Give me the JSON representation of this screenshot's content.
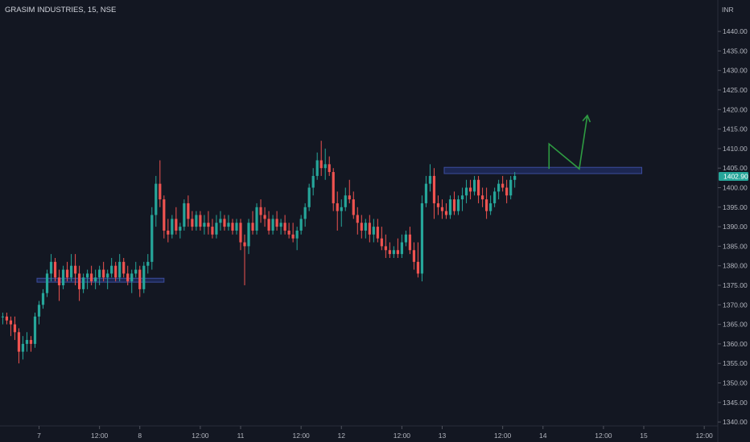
{
  "chart_data": {
    "type": "candlestick",
    "title": "GRASIM INDUSTRIES, 15, NSE",
    "currency": "INR",
    "y_range": [
      1338,
      1445
    ],
    "y_ticks": [
      1340,
      1345,
      1350,
      1355,
      1360,
      1365,
      1370,
      1375,
      1380,
      1385,
      1390,
      1395,
      1400,
      1405,
      1410,
      1415,
      1420,
      1425,
      1430,
      1435,
      1440
    ],
    "y_tick_labels": [
      "1340.00",
      "1345.00",
      "1350.00",
      "1355.00",
      "1360.00",
      "1365.00",
      "1370.00",
      "1375.00",
      "1380.00",
      "1385.00",
      "1390.00",
      "1395.00",
      "1400.00",
      "1405.00",
      "1410.00",
      "1415.00",
      "1420.00",
      "1425.00",
      "1430.00",
      "1435.00",
      "1440.00"
    ],
    "x_tick_labels": [
      "7",
      "12:00",
      "8",
      "12:00",
      "11",
      "12:00",
      "12",
      "12:00",
      "13",
      "12:00",
      "14",
      "12:00",
      "15",
      "12:00"
    ],
    "x_tick_units": [
      0,
      15,
      25,
      40,
      50,
      65,
      75,
      90,
      100,
      115,
      125,
      140,
      150,
      165
    ],
    "x_units_per_day": 25,
    "candles_per_day": 25,
    "last_price": "1402.90",
    "colors": {
      "up": "#26a69a",
      "down": "#ef5350",
      "background": "#131722",
      "zone_fill": "#1f2a5a",
      "zone_border": "#3c4d9e",
      "arrow": "#2e9b42",
      "price_label_bg": "#26a69a"
    },
    "candles": [
      [
        1367,
        1368,
        1365,
        1367
      ],
      [
        1367,
        1368,
        1365,
        1366
      ],
      [
        1366,
        1367,
        1362,
        1365
      ],
      [
        1365,
        1367,
        1361,
        1363
      ],
      [
        1363,
        1364,
        1355,
        1358
      ],
      [
        1358,
        1362,
        1356,
        1360
      ],
      [
        1360,
        1363,
        1358,
        1361
      ],
      [
        1361,
        1362,
        1358,
        1360
      ],
      [
        1360,
        1368,
        1359,
        1367
      ],
      [
        1367,
        1371,
        1365,
        1370
      ],
      [
        1370,
        1374,
        1369,
        1373
      ],
      [
        1373,
        1379,
        1372,
        1378
      ],
      [
        1378,
        1383,
        1376,
        1381
      ],
      [
        1381,
        1382,
        1376,
        1377
      ],
      [
        1377,
        1379,
        1371,
        1375
      ],
      [
        1375,
        1380,
        1374,
        1379
      ],
      [
        1379,
        1381,
        1376,
        1377
      ],
      [
        1377,
        1383,
        1376,
        1380
      ],
      [
        1380,
        1383,
        1375,
        1378
      ],
      [
        1378,
        1380,
        1371,
        1374
      ],
      [
        1374,
        1378,
        1373,
        1377
      ],
      [
        1377,
        1379,
        1374,
        1378
      ],
      [
        1378,
        1380,
        1375,
        1376
      ],
      [
        1376,
        1379,
        1374,
        1377
      ],
      [
        1377,
        1380,
        1375,
        1379
      ],
      [
        1379,
        1381,
        1376,
        1377
      ],
      [
        1377,
        1379,
        1374,
        1378
      ],
      [
        1378,
        1382,
        1377,
        1380
      ],
      [
        1380,
        1381,
        1376,
        1377
      ],
      [
        1377,
        1383,
        1376,
        1381
      ],
      [
        1381,
        1382,
        1377,
        1378
      ],
      [
        1378,
        1380,
        1375,
        1376
      ],
      [
        1376,
        1379,
        1373,
        1378
      ],
      [
        1378,
        1381,
        1377,
        1379
      ],
      [
        1379,
        1380,
        1372,
        1374
      ],
      [
        1374,
        1381,
        1373,
        1380
      ],
      [
        1380,
        1383,
        1378,
        1381
      ],
      [
        1381,
        1395,
        1379,
        1393
      ],
      [
        1393,
        1403,
        1390,
        1401
      ],
      [
        1401,
        1407,
        1395,
        1397
      ],
      [
        1397,
        1398,
        1387,
        1389
      ],
      [
        1389,
        1392,
        1386,
        1388
      ],
      [
        1388,
        1393,
        1387,
        1392
      ],
      [
        1392,
        1395,
        1388,
        1389
      ],
      [
        1389,
        1391,
        1387,
        1390
      ],
      [
        1390,
        1397,
        1389,
        1396
      ],
      [
        1396,
        1398,
        1390,
        1392
      ],
      [
        1392,
        1394,
        1389,
        1390
      ],
      [
        1390,
        1394,
        1389,
        1393
      ],
      [
        1393,
        1394,
        1389,
        1390
      ],
      [
        1390,
        1393,
        1388,
        1391
      ],
      [
        1391,
        1394,
        1388,
        1390
      ],
      [
        1390,
        1392,
        1387,
        1388
      ],
      [
        1388,
        1393,
        1387,
        1391
      ],
      [
        1391,
        1394,
        1389,
        1392
      ],
      [
        1392,
        1393,
        1389,
        1390
      ],
      [
        1390,
        1393,
        1389,
        1391
      ],
      [
        1391,
        1392,
        1388,
        1389
      ],
      [
        1389,
        1392,
        1388,
        1391
      ],
      [
        1391,
        1392,
        1384,
        1386
      ],
      [
        1386,
        1388,
        1375,
        1385
      ],
      [
        1385,
        1392,
        1383,
        1391
      ],
      [
        1391,
        1394,
        1388,
        1389
      ],
      [
        1389,
        1396,
        1388,
        1395
      ],
      [
        1395,
        1397,
        1391,
        1393
      ],
      [
        1393,
        1395,
        1390,
        1392
      ],
      [
        1392,
        1394,
        1388,
        1389
      ],
      [
        1389,
        1393,
        1388,
        1392
      ],
      [
        1392,
        1394,
        1389,
        1390
      ],
      [
        1390,
        1392,
        1388,
        1391
      ],
      [
        1391,
        1393,
        1388,
        1389
      ],
      [
        1389,
        1391,
        1387,
        1388
      ],
      [
        1388,
        1391,
        1386,
        1387
      ],
      [
        1387,
        1390,
        1384,
        1389
      ],
      [
        1389,
        1393,
        1388,
        1392
      ],
      [
        1392,
        1396,
        1390,
        1395
      ],
      [
        1395,
        1401,
        1394,
        1400
      ],
      [
        1400,
        1405,
        1398,
        1403
      ],
      [
        1403,
        1409,
        1402,
        1407
      ],
      [
        1407,
        1412,
        1403,
        1405
      ],
      [
        1405,
        1410,
        1402,
        1406
      ],
      [
        1406,
        1408,
        1403,
        1404
      ],
      [
        1404,
        1405,
        1394,
        1396
      ],
      [
        1396,
        1399,
        1389,
        1394
      ],
      [
        1394,
        1397,
        1390,
        1395
      ],
      [
        1395,
        1400,
        1394,
        1398
      ],
      [
        1398,
        1402,
        1396,
        1397
      ],
      [
        1397,
        1399,
        1392,
        1393
      ],
      [
        1393,
        1395,
        1388,
        1391
      ],
      [
        1391,
        1393,
        1387,
        1389
      ],
      [
        1389,
        1392,
        1387,
        1391
      ],
      [
        1391,
        1393,
        1386,
        1388
      ],
      [
        1388,
        1392,
        1386,
        1390
      ],
      [
        1390,
        1392,
        1386,
        1387
      ],
      [
        1387,
        1390,
        1384,
        1385
      ],
      [
        1385,
        1388,
        1382,
        1384
      ],
      [
        1384,
        1386,
        1382,
        1383
      ],
      [
        1383,
        1385,
        1382,
        1384
      ],
      [
        1384,
        1387,
        1382,
        1383
      ],
      [
        1383,
        1388,
        1382,
        1386
      ],
      [
        1386,
        1389,
        1385,
        1388
      ],
      [
        1388,
        1390,
        1383,
        1384
      ],
      [
        1384,
        1386,
        1379,
        1381
      ],
      [
        1381,
        1386,
        1377,
        1378
      ],
      [
        1378,
        1398,
        1376,
        1396
      ],
      [
        1396,
        1403,
        1395,
        1401
      ],
      [
        1401,
        1406,
        1399,
        1403
      ],
      [
        1403,
        1405,
        1392,
        1396
      ],
      [
        1396,
        1398,
        1393,
        1395
      ],
      [
        1395,
        1397,
        1392,
        1394
      ],
      [
        1394,
        1396,
        1392,
        1393
      ],
      [
        1393,
        1398,
        1392,
        1397
      ],
      [
        1397,
        1399,
        1393,
        1394
      ],
      [
        1394,
        1398,
        1393,
        1397
      ],
      [
        1397,
        1400,
        1394,
        1398
      ],
      [
        1398,
        1402,
        1396,
        1400
      ],
      [
        1400,
        1402,
        1397,
        1399
      ],
      [
        1399,
        1403,
        1398,
        1402
      ],
      [
        1402,
        1403,
        1396,
        1398
      ],
      [
        1398,
        1400,
        1395,
        1397
      ],
      [
        1397,
        1400,
        1392,
        1394
      ],
      [
        1394,
        1398,
        1393,
        1396
      ],
      [
        1396,
        1400,
        1395,
        1399
      ],
      [
        1399,
        1402,
        1397,
        1401
      ],
      [
        1401,
        1403,
        1399,
        1400
      ],
      [
        1400,
        1402,
        1396,
        1398
      ],
      [
        1398,
        1403,
        1397,
        1402
      ],
      [
        1402,
        1404,
        1400,
        1403
      ]
    ],
    "zones": [
      {
        "from_unit": -0.5,
        "to_unit": 31,
        "low": 1375.8,
        "high": 1376.8
      },
      {
        "from_unit": 100.5,
        "to_unit": 149.5,
        "low": 1403.6,
        "high": 1405.2
      }
    ],
    "arrow_path": [
      [
        126.5,
        1404.8
      ],
      [
        126.5,
        1411.2
      ],
      [
        134,
        1404.8
      ],
      [
        136,
        1418.5
      ]
    ]
  }
}
